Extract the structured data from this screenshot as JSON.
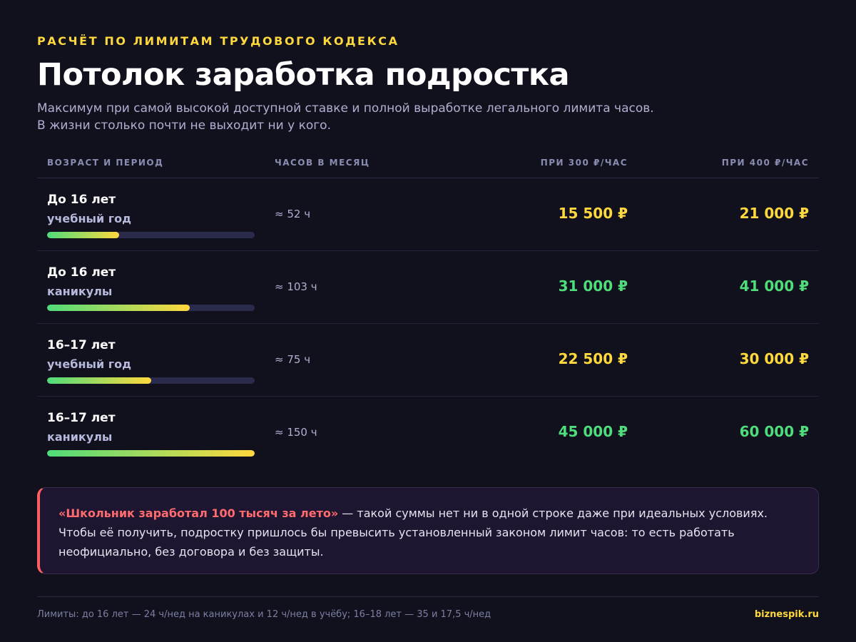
{
  "header": {
    "kicker": "РАСЧЁТ ПО ЛИМИТАМ ТРУДОВОГО КОДЕКСА",
    "title": "Потолок заработка подростка",
    "subtitle": "Максимум при самой высокой доступной ставке и полной выработке легального лимита часов. В жизни столько почти не выходит ни у кого."
  },
  "table": {
    "columns": [
      "ВОЗРАСТ И ПЕРИОД",
      "ЧАСОВ В МЕСЯЦ",
      "ПРИ 300 ₽/ЧАС",
      "ПРИ 400 ₽/ЧАС"
    ],
    "rows": [
      {
        "age": "До 16 лет",
        "period": "учебный год",
        "hours": "≈ 52 ч",
        "hours_value": 52,
        "pay_300": "15 500 ₽",
        "pay_400": "21 000 ₽",
        "highlight_color": "#ffd83d"
      },
      {
        "age": "До 16 лет",
        "period": "каникулы",
        "hours": "≈ 103 ч",
        "hours_value": 103,
        "pay_300": "31 000 ₽",
        "pay_400": "41 000 ₽",
        "highlight_color": "#4fdc7a"
      },
      {
        "age": "16–17 лет",
        "period": "учебный год",
        "hours": "≈ 75 ч",
        "hours_value": 75,
        "pay_300": "22 500 ₽",
        "pay_400": "30 000 ₽",
        "highlight_color": "#ffd83d"
      },
      {
        "age": "16–17 лет",
        "period": "каникулы",
        "hours": "≈ 150 ч",
        "hours_value": 150,
        "pay_300": "45 000 ₽",
        "pay_400": "60 000 ₽",
        "highlight_color": "#4fdc7a"
      }
    ],
    "bar_max_hours": 150
  },
  "note": {
    "strong": "«Школьник заработал 100 тысяч за лето»",
    "text": " — такой суммы нет ни в одной строке даже при идеальных условиях. Чтобы её получить, подростку пришлось бы превысить установленный законом лимит часов: то есть работать неофициально, без договора и без защиты."
  },
  "footer": {
    "footnote": "Лимиты: до 16 лет — 24 ч/нед на каникулах и 12 ч/нед в учёбу; 16–18 лет — 35 и 17,5 ч/нед",
    "brand": "biznespik.ru"
  },
  "colors": {
    "background": "#10111c",
    "accent_yellow": "#ffd83d",
    "accent_green": "#4fdc7a",
    "accent_red": "#ff5e62"
  }
}
